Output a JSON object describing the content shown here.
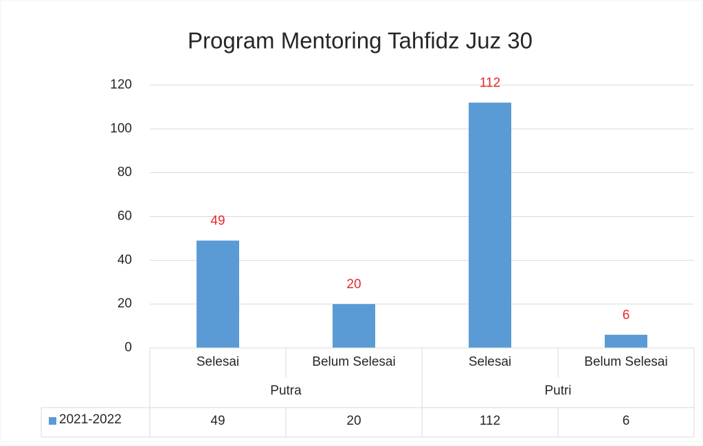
{
  "chart_data": {
    "type": "bar",
    "title": "Program Mentoring Tahfidz Juz 30",
    "categories": [
      "Selesai",
      "Belum Selesai",
      "Selesai",
      "Belum Selesai"
    ],
    "category_groups": [
      "Putra",
      "Putri"
    ],
    "series": [
      {
        "name": "2021-2022",
        "color": "#5b9bd5",
        "values": [
          49,
          20,
          112,
          6
        ]
      }
    ],
    "value_label_color": "#e8262b",
    "ylim": [
      0,
      120
    ],
    "yticks": [
      0,
      20,
      40,
      60,
      80,
      100,
      120
    ],
    "grid": true,
    "data_table": true
  }
}
